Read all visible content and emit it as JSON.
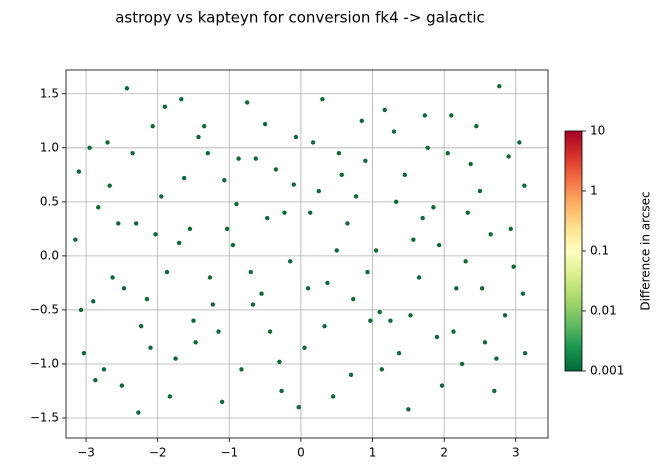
{
  "chart_data": {
    "type": "scatter",
    "title": "astropy vs kapteyn for conversion fk4 -> galactic",
    "color": "#0b6a35",
    "grid": true,
    "xlim": [
      -3.28,
      3.45
    ],
    "ylim": [
      -1.685,
      1.72
    ],
    "xticks": [
      {
        "value": -3,
        "label": "−3"
      },
      {
        "value": -2,
        "label": "−2"
      },
      {
        "value": -1,
        "label": "−1"
      },
      0,
      1,
      2,
      3
    ],
    "yticks": [
      {
        "value": -1.5,
        "label": "−1.5"
      },
      {
        "value": -1.0,
        "label": "−1.0"
      },
      {
        "value": -0.5,
        "label": "−0.5"
      },
      {
        "value": 0,
        "label": "0.0"
      },
      0.5,
      {
        "value": 1.0,
        "label": "1.0"
      },
      1.5
    ],
    "x": [
      -3.1,
      -2.9,
      -2.7,
      -2.5,
      -2.3,
      -2.1,
      -1.9,
      -1.7,
      -1.5,
      -1.3,
      -1.1,
      -0.9,
      -0.7,
      -0.5,
      -0.3,
      -0.1,
      0.1,
      0.3,
      0.5,
      0.7,
      0.9,
      1.1,
      1.3,
      1.5,
      1.7,
      1.9,
      2.1,
      2.3,
      2.5,
      2.7,
      2.9,
      3.1,
      -3.03,
      -2.83,
      -2.63,
      -2.43,
      -2.23,
      -2.03,
      -1.83,
      -1.63,
      -1.43,
      -1.23,
      -1.03,
      -0.83,
      -0.63,
      -0.43,
      -0.23,
      -0.03,
      0.17,
      0.37,
      0.57,
      0.77,
      0.97,
      1.17,
      1.37,
      1.57,
      1.77,
      1.97,
      2.17,
      2.37,
      2.57,
      2.77,
      2.97,
      3.12,
      -3.15,
      -2.95,
      -2.75,
      -2.55,
      -2.35,
      -2.15,
      -1.95,
      -1.75,
      -1.55,
      -1.35,
      -1.15,
      -0.95,
      -0.75,
      -0.55,
      -0.35,
      -0.15,
      0.05,
      0.25,
      0.45,
      0.65,
      0.85,
      1.05,
      1.25,
      1.45,
      1.65,
      1.85,
      2.05,
      2.25,
      2.45,
      2.65,
      2.85,
      3.05,
      -3.07,
      -2.87,
      -2.67,
      -2.47,
      -2.27,
      -2.07,
      -1.87,
      -1.67,
      -1.47,
      -1.27,
      -1.07,
      -0.87,
      -0.67,
      -0.47,
      -0.27,
      -0.07,
      0.13,
      0.33,
      0.53,
      0.73,
      0.93,
      1.13,
      1.33,
      1.53,
      1.73,
      1.93,
      2.13,
      2.33,
      2.53,
      2.73,
      2.93,
      3.13
    ],
    "values": [
      0.78,
      -0.42,
      1.05,
      -1.2,
      0.3,
      -0.85,
      1.38,
      0.12,
      -0.6,
      0.95,
      -1.35,
      0.48,
      -0.15,
      1.22,
      -0.98,
      0.66,
      -0.3,
      1.45,
      0.05,
      -1.1,
      0.88,
      -0.52,
      1.15,
      -1.42,
      0.35,
      -0.75,
      1.3,
      -0.05,
      0.6,
      -1.25,
      0.92,
      -0.35,
      -0.9,
      0.45,
      -0.2,
      1.55,
      -0.65,
      0.2,
      -1.3,
      0.72,
      1.1,
      -0.45,
      0.25,
      -1.05,
      0.9,
      -0.7,
      0.4,
      -1.4,
      1.05,
      -0.25,
      0.75,
      0.55,
      -0.6,
      1.35,
      -0.9,
      0.15,
      1.0,
      -1.2,
      -0.3,
      0.85,
      -0.8,
      1.57,
      -0.1,
      0.65,
      0.15,
      1.0,
      -1.05,
      0.3,
      0.95,
      -0.4,
      0.55,
      -0.95,
      0.25,
      1.2,
      -0.7,
      0.1,
      1.42,
      -0.35,
      0.8,
      -0.05,
      -0.85,
      0.6,
      -1.3,
      0.3,
      1.25,
      0.05,
      -0.6,
      0.75,
      -0.2,
      0.45,
      0.95,
      -1.0,
      1.2,
      0.2,
      -0.55,
      1.05,
      -0.5,
      -1.15,
      0.65,
      -0.3,
      -1.45,
      1.2,
      -0.15,
      1.45,
      -0.8,
      -0.2,
      0.7,
      0.9,
      -0.45,
      0.35,
      -1.25,
      1.1,
      0.4,
      -0.65,
      0.95,
      -0.4,
      -0.15,
      -1.05,
      0.5,
      -0.55,
      1.3,
      0.1,
      -0.7,
      0.4,
      -0.3,
      -0.95,
      0.25,
      -0.9
    ],
    "colorbar": {
      "label": "Difference in arcsec",
      "log": true,
      "lim": [
        0.001,
        10
      ],
      "ticks": [
        0.001,
        0.01,
        0.1,
        1,
        10
      ],
      "colors": [
        "#006837",
        "#1a9850",
        "#66bd63",
        "#a6d96a",
        "#d9ef8b",
        "#ffffbf",
        "#fee08b",
        "#fdae61",
        "#f46d43",
        "#d73027",
        "#a50026"
      ]
    }
  }
}
